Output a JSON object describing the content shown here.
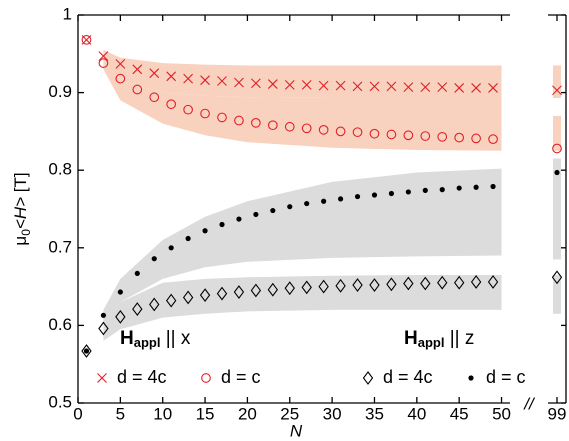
{
  "chart_data": {
    "type": "scatter",
    "xlabel": "N",
    "ylabel": [
      "μ",
      "0",
      "<H>",
      " [T]"
    ],
    "axis_break": "//",
    "xlim": [
      0,
      51
    ],
    "x2lim": [
      98,
      100
    ],
    "xticks": [
      0,
      5,
      10,
      15,
      20,
      25,
      30,
      35,
      40,
      45,
      50
    ],
    "x2ticks": [
      99
    ],
    "ylim": [
      0.5,
      1
    ],
    "yticks": [
      0.5,
      0.6,
      0.7,
      0.8,
      0.9,
      1
    ],
    "x": [
      1,
      3,
      5,
      7,
      9,
      11,
      13,
      15,
      17,
      19,
      21,
      23,
      25,
      27,
      29,
      31,
      33,
      35,
      37,
      39,
      41,
      43,
      45,
      47,
      49,
      99
    ],
    "legend_groups": [
      {
        "title": [
          "H",
          "appl",
          " || x"
        ],
        "color": "#e0202a"
      },
      {
        "title": [
          "H",
          "appl",
          " || z"
        ],
        "color": "#000000"
      }
    ],
    "bands": [
      {
        "color": "#f9d2bf",
        "x": [
          3,
          5,
          10,
          15,
          20,
          30,
          40,
          50,
          99
        ],
        "upper": [
          0.955,
          0.945,
          0.938,
          0.936,
          0.935,
          0.935,
          0.935,
          0.935,
          0.935
        ],
        "lower": [
          0.94,
          0.915,
          0.9,
          0.896,
          0.894,
          0.893,
          0.893,
          0.893,
          0.893
        ]
      },
      {
        "color": "#f9d2bf",
        "x": [
          3,
          5,
          10,
          15,
          20,
          30,
          40,
          50,
          99
        ],
        "upper": [
          0.94,
          0.915,
          0.9,
          0.896,
          0.894,
          0.893,
          0.893,
          0.893,
          0.87
        ],
        "lower": [
          0.93,
          0.89,
          0.86,
          0.845,
          0.836,
          0.829,
          0.826,
          0.825,
          0.825
        ]
      },
      {
        "color": "#dcdcdc",
        "x": [
          3,
          5,
          10,
          15,
          20,
          30,
          40,
          50,
          99
        ],
        "upper": [
          0.62,
          0.66,
          0.71,
          0.74,
          0.76,
          0.785,
          0.797,
          0.802,
          0.815
        ],
        "lower": [
          0.6,
          0.63,
          0.66,
          0.675,
          0.682,
          0.687,
          0.689,
          0.69,
          0.685
        ]
      },
      {
        "color": "#dcdcdc",
        "x": [
          3,
          5,
          10,
          15,
          20,
          30,
          40,
          50,
          99
        ],
        "upper": [
          0.6,
          0.63,
          0.655,
          0.66,
          0.662,
          0.664,
          0.665,
          0.665,
          0.665
        ],
        "lower": [
          0.58,
          0.595,
          0.61,
          0.615,
          0.618,
          0.62,
          0.62,
          0.62,
          0.615
        ]
      }
    ],
    "series": [
      {
        "name": "d = 4c",
        "group": 0,
        "marker": "cross",
        "color": "#e0202a",
        "values": [
          0.968,
          0.947,
          0.937,
          0.93,
          0.925,
          0.921,
          0.918,
          0.916,
          0.915,
          0.913,
          0.912,
          0.911,
          0.91,
          0.91,
          0.909,
          0.909,
          0.908,
          0.908,
          0.908,
          0.907,
          0.907,
          0.907,
          0.906,
          0.906,
          0.906,
          0.903
        ]
      },
      {
        "name": "d = c",
        "group": 0,
        "marker": "circle",
        "color": "#e0202a",
        "values": [
          0.968,
          0.938,
          0.918,
          0.904,
          0.894,
          0.885,
          0.878,
          0.873,
          0.868,
          0.864,
          0.861,
          0.858,
          0.856,
          0.854,
          0.852,
          0.85,
          0.849,
          0.847,
          0.846,
          0.845,
          0.844,
          0.843,
          0.842,
          0.841,
          0.84,
          0.828
        ]
      },
      {
        "name": "d = 4c",
        "group": 1,
        "marker": "diamond",
        "color": "#000000",
        "values": [
          0.567,
          0.596,
          0.611,
          0.621,
          0.627,
          0.632,
          0.636,
          0.639,
          0.641,
          0.643,
          0.645,
          0.646,
          0.648,
          0.649,
          0.65,
          0.651,
          0.652,
          0.652,
          0.653,
          0.654,
          0.654,
          0.655,
          0.655,
          0.656,
          0.656,
          0.662
        ]
      },
      {
        "name": "d = c",
        "group": 1,
        "marker": "dot",
        "color": "#000000",
        "values": [
          0.567,
          0.613,
          0.643,
          0.667,
          0.686,
          0.7,
          0.712,
          0.722,
          0.73,
          0.737,
          0.743,
          0.748,
          0.753,
          0.757,
          0.76,
          0.763,
          0.766,
          0.768,
          0.77,
          0.772,
          0.774,
          0.775,
          0.777,
          0.778,
          0.779,
          0.797
        ]
      }
    ]
  }
}
